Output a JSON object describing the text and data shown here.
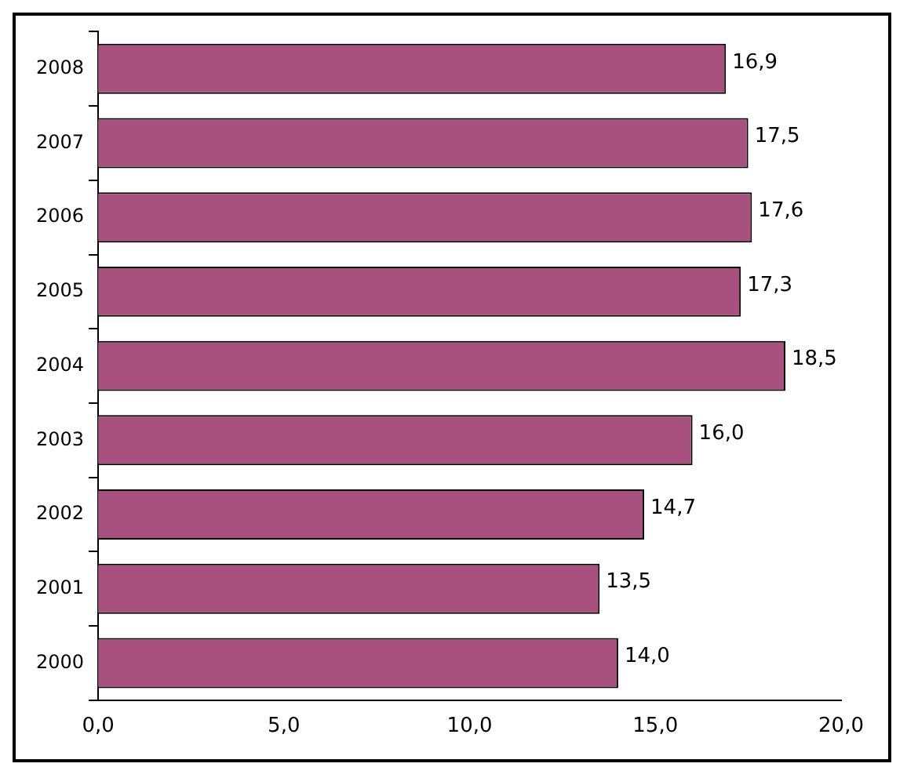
{
  "chart_data": {
    "type": "bar",
    "orientation": "horizontal",
    "categories": [
      "2008",
      "2007",
      "2006",
      "2005",
      "2004",
      "2003",
      "2002",
      "2001",
      "2000"
    ],
    "values": [
      16.9,
      17.5,
      17.6,
      17.3,
      18.5,
      16.0,
      14.7,
      13.5,
      14.0
    ],
    "value_labels": [
      "16,9",
      "17,5",
      "17,6",
      "17,3",
      "18,5",
      "16,0",
      "14,7",
      "13,5",
      "14,0"
    ],
    "color": "#a8507e",
    "xlim": [
      0,
      20
    ],
    "xticks": [
      {
        "value": 0,
        "label": "0,0"
      },
      {
        "value": 5,
        "label": "5,0"
      },
      {
        "value": 10,
        "label": "10,0"
      },
      {
        "value": 15,
        "label": "15,0"
      },
      {
        "value": 20,
        "label": "20,0"
      }
    ],
    "grid": false,
    "legend": false
  }
}
